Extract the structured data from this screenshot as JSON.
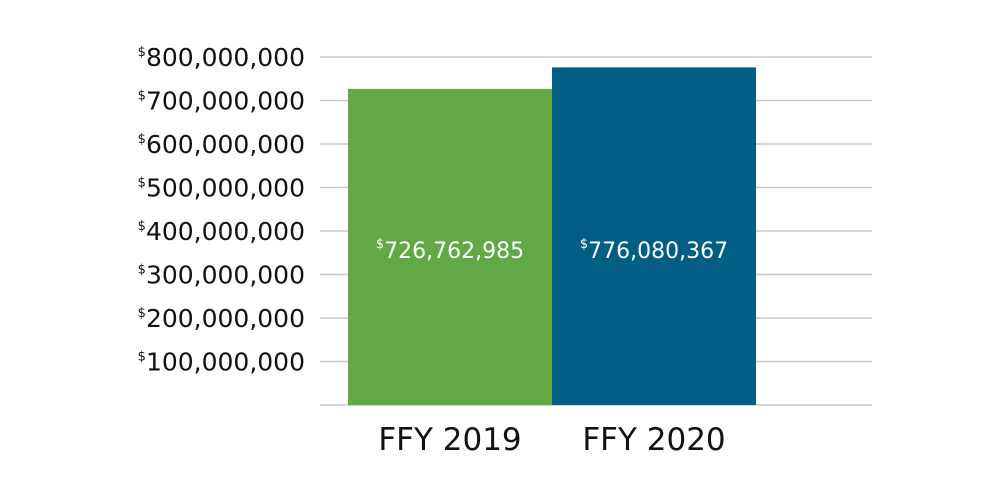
{
  "chart_data": {
    "type": "bar",
    "categories": [
      "FFY 2019",
      "FFY 2020"
    ],
    "values": [
      726762985,
      776080367
    ],
    "data_labels": [
      "726,762,985",
      "776,080,367"
    ],
    "currency_symbol": "$",
    "colors": [
      "#62a845",
      "#025e84"
    ],
    "gridline_color": "#c8c8c8",
    "ylim": [
      0,
      800000000
    ],
    "yticks": [
      100000000,
      200000000,
      300000000,
      400000000,
      500000000,
      600000000,
      700000000,
      800000000
    ],
    "ytick_labels": [
      "100,000,000",
      "200,000,000",
      "300,000,000",
      "400,000,000",
      "500,000,000",
      "600,000,000",
      "700,000,000",
      "800,000,000"
    ],
    "grid": true,
    "title": "",
    "xlabel": "",
    "ylabel": ""
  }
}
